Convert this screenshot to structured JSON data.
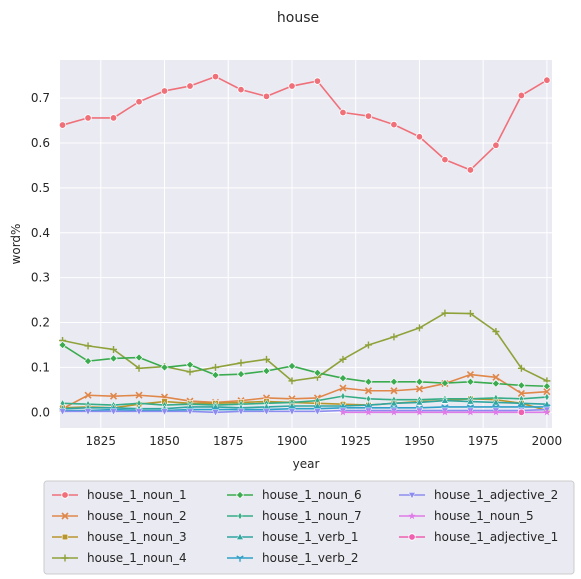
{
  "chart_data": {
    "type": "line",
    "title": "house",
    "xlabel": "year",
    "ylabel": "word%",
    "xlim": [
      1809,
      2002
    ],
    "ylim": [
      -0.035,
      0.785
    ],
    "xticks": [
      1825,
      1850,
      1875,
      1900,
      1925,
      1950,
      1975,
      2000
    ],
    "yticks": [
      0.0,
      0.1,
      0.2,
      0.3,
      0.4,
      0.5,
      0.6,
      0.7
    ],
    "ytick_labels": [
      "0.0",
      "0.1",
      "0.2",
      "0.3",
      "0.4",
      "0.5",
      "0.6",
      "0.7"
    ],
    "grid": true,
    "legend": "below",
    "series": [
      {
        "name": "house_1_noun_1",
        "color": "#f0707a",
        "marker": "circle",
        "x": [
          1810,
          1820,
          1830,
          1840,
          1850,
          1860,
          1870,
          1880,
          1890,
          1900,
          1910,
          1920,
          1930,
          1940,
          1950,
          1960,
          1970,
          1980,
          1990,
          2000
        ],
        "y": [
          0.64,
          0.656,
          0.656,
          0.692,
          0.716,
          0.727,
          0.748,
          0.719,
          0.704,
          0.727,
          0.738,
          0.668,
          0.66,
          0.641,
          0.614,
          0.563,
          0.54,
          0.595,
          0.706,
          0.74
        ]
      },
      {
        "name": "house_1_noun_2",
        "color": "#e0874a",
        "marker": "x",
        "x": [
          1810,
          1820,
          1830,
          1840,
          1850,
          1860,
          1870,
          1880,
          1890,
          1900,
          1910,
          1920,
          1930,
          1940,
          1950,
          1960,
          1970,
          1980,
          1990,
          2000
        ],
        "y": [
          0.008,
          0.038,
          0.036,
          0.038,
          0.034,
          0.025,
          0.022,
          0.026,
          0.032,
          0.03,
          0.032,
          0.054,
          0.048,
          0.048,
          0.052,
          0.064,
          0.084,
          0.078,
          0.042,
          0.046
        ]
      },
      {
        "name": "house_1_noun_3",
        "color": "#b8962e",
        "marker": "square",
        "x": [
          1810,
          1820,
          1830,
          1840,
          1850,
          1860,
          1870,
          1880,
          1890,
          1900,
          1910,
          1920,
          1930,
          1940,
          1950,
          1960,
          1970,
          1980,
          1990,
          2000
        ],
        "y": [
          0.01,
          0.012,
          0.01,
          0.018,
          0.024,
          0.02,
          0.02,
          0.022,
          0.024,
          0.022,
          0.02,
          0.018,
          0.016,
          0.02,
          0.024,
          0.026,
          0.03,
          0.028,
          0.02,
          0.004
        ]
      },
      {
        "name": "house_1_noun_4",
        "color": "#8ea23a",
        "marker": "plus",
        "x": [
          1810,
          1820,
          1830,
          1840,
          1850,
          1860,
          1870,
          1880,
          1890,
          1900,
          1910,
          1920,
          1930,
          1940,
          1950,
          1960,
          1970,
          1980,
          1990,
          2000
        ],
        "y": [
          0.16,
          0.148,
          0.14,
          0.098,
          0.102,
          0.09,
          0.1,
          0.11,
          0.118,
          0.07,
          0.078,
          0.118,
          0.15,
          0.168,
          0.188,
          0.221,
          0.22,
          0.18,
          0.098,
          0.07
        ]
      },
      {
        "name": "house_1_noun_6",
        "color": "#3aab4e",
        "marker": "diamond",
        "x": [
          1810,
          1820,
          1830,
          1840,
          1850,
          1860,
          1870,
          1880,
          1890,
          1900,
          1910,
          1920,
          1930,
          1940,
          1950,
          1960,
          1970,
          1980,
          1990,
          2000
        ],
        "y": [
          0.15,
          0.114,
          0.12,
          0.122,
          0.1,
          0.106,
          0.083,
          0.085,
          0.092,
          0.103,
          0.088,
          0.076,
          0.068,
          0.068,
          0.068,
          0.065,
          0.068,
          0.064,
          0.06,
          0.058
        ]
      },
      {
        "name": "house_1_noun_7",
        "color": "#36ad86",
        "marker": "thin-diamond",
        "x": [
          1810,
          1820,
          1830,
          1840,
          1850,
          1860,
          1870,
          1880,
          1890,
          1900,
          1910,
          1920,
          1930,
          1940,
          1950,
          1960,
          1970,
          1980,
          1990,
          2000
        ],
        "y": [
          0.02,
          0.018,
          0.016,
          0.02,
          0.016,
          0.018,
          0.016,
          0.018,
          0.02,
          0.022,
          0.026,
          0.036,
          0.03,
          0.028,
          0.028,
          0.03,
          0.03,
          0.032,
          0.03,
          0.034
        ]
      },
      {
        "name": "house_1_verb_1",
        "color": "#30a6a0",
        "marker": "triangle-up",
        "x": [
          1810,
          1820,
          1830,
          1840,
          1850,
          1860,
          1870,
          1880,
          1890,
          1900,
          1910,
          1920,
          1930,
          1940,
          1950,
          1960,
          1970,
          1980,
          1990,
          2000
        ],
        "y": [
          0.008,
          0.01,
          0.01,
          0.008,
          0.008,
          0.012,
          0.012,
          0.01,
          0.012,
          0.014,
          0.014,
          0.014,
          0.016,
          0.02,
          0.022,
          0.026,
          0.024,
          0.022,
          0.02,
          0.018
        ]
      },
      {
        "name": "house_1_verb_2",
        "color": "#2fa0c8",
        "marker": "tri-down",
        "x": [
          1810,
          1820,
          1830,
          1840,
          1850,
          1860,
          1870,
          1880,
          1890,
          1900,
          1910,
          1920,
          1930,
          1940,
          1950,
          1960,
          1970,
          1980,
          1990,
          2000
        ],
        "y": [
          0.004,
          0.004,
          0.006,
          0.004,
          0.004,
          0.006,
          0.006,
          0.006,
          0.006,
          0.008,
          0.008,
          0.01,
          0.01,
          0.01,
          0.01,
          0.012,
          0.012,
          0.012,
          0.012,
          0.012
        ]
      },
      {
        "name": "house_1_adjective_2",
        "color": "#8c8cf0",
        "marker": "triangle-down",
        "x": [
          1810,
          1820,
          1830,
          1840,
          1850,
          1860,
          1870,
          1880,
          1890,
          1900,
          1910,
          1920,
          1930,
          1940,
          1950,
          1960,
          1970,
          1980,
          1990,
          2000
        ],
        "y": [
          0.002,
          0.002,
          0.002,
          0.002,
          0.002,
          0.002,
          0.0,
          0.002,
          0.002,
          0.002,
          0.002,
          0.004,
          0.004,
          0.004,
          0.004,
          0.004,
          0.004,
          0.004,
          0.004,
          0.006
        ]
      },
      {
        "name": "house_1_noun_5",
        "color": "#e07ae8",
        "marker": "star",
        "x": [
          1920,
          1930,
          1940,
          1950,
          1960,
          1970,
          1980,
          1990,
          2000
        ],
        "y": [
          0.0,
          0.0,
          0.0,
          0.0,
          0.0,
          0.0,
          0.0,
          0.0,
          0.0
        ]
      },
      {
        "name": "house_1_adjective_1",
        "color": "#f060b0",
        "marker": "circle",
        "x": [
          1990
        ],
        "y": [
          0.0
        ]
      }
    ]
  }
}
